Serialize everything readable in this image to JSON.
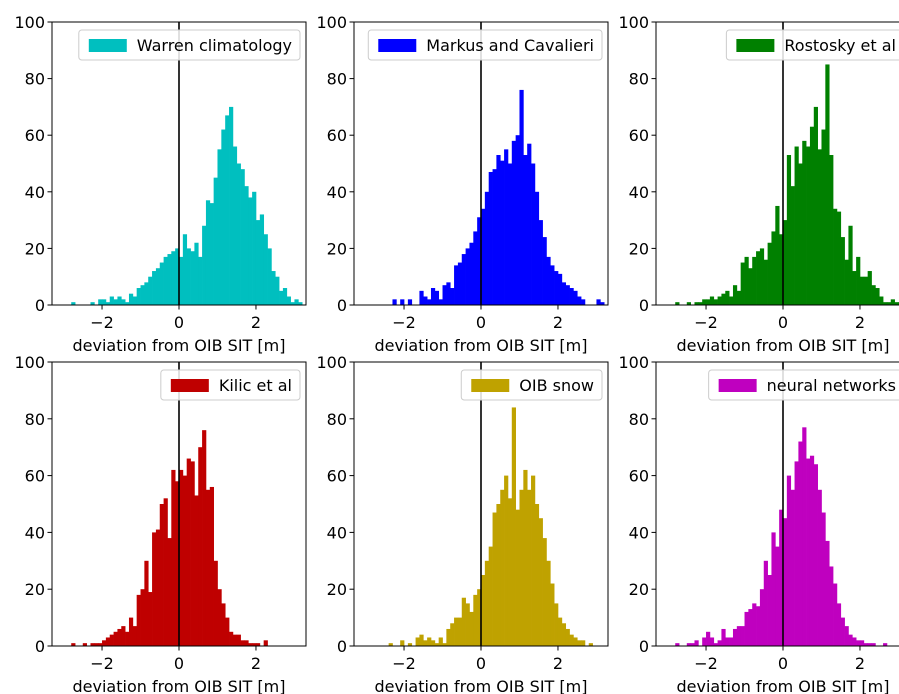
{
  "chart_data": [
    {
      "type": "bar",
      "legend": "Warren climatology",
      "legend_position": "top-right",
      "color": "#00bfbf",
      "xlabel": "deviation from OIB SIT [m]",
      "ylabel": "",
      "xlim": [
        -3.3,
        3.3
      ],
      "ylim": [
        0,
        100
      ],
      "xticks": [
        -2,
        0,
        2
      ],
      "xtick_labels": [
        "−2",
        "0",
        "2"
      ],
      "yticks": [
        0,
        20,
        40,
        60,
        80,
        100
      ],
      "yticklabels": [
        "0",
        "20",
        "40",
        "60",
        "80",
        "100"
      ],
      "bin_start": -3.0,
      "bin_width": 0.1,
      "values": [
        0,
        0,
        1,
        0,
        0,
        0,
        0,
        1,
        0,
        2,
        2,
        1,
        3,
        2,
        3,
        2,
        1,
        4,
        3,
        6,
        7,
        8,
        10,
        12,
        13,
        15,
        17,
        18,
        19,
        20,
        17,
        25,
        20,
        19,
        22,
        17,
        28,
        37,
        36,
        45,
        55,
        62,
        67,
        70,
        56,
        50,
        48,
        42,
        38,
        40,
        30,
        32,
        25,
        20,
        12,
        10,
        5,
        6,
        3,
        1,
        2,
        1,
        0,
        0,
        0
      ]
    },
    {
      "type": "bar",
      "legend": "Markus and Cavalieri",
      "legend_position": "top-right",
      "color": "#0000ff",
      "xlabel": "deviation from OIB SIT [m]",
      "ylabel": "",
      "xlim": [
        -3.3,
        3.3
      ],
      "ylim": [
        0,
        100
      ],
      "xticks": [
        -2,
        0,
        2
      ],
      "xtick_labels": [
        "−2",
        "0",
        "2"
      ],
      "yticks": [
        0,
        20,
        40,
        60,
        80,
        100
      ],
      "yticklabels": [
        "0",
        "20",
        "40",
        "60",
        "80",
        "100"
      ],
      "bin_start": -2.7,
      "bin_width": 0.1,
      "values": [
        0,
        0,
        0,
        0,
        2,
        0,
        2,
        0,
        2,
        0,
        0,
        5,
        3,
        2,
        6,
        5,
        2,
        7,
        8,
        6,
        14,
        15,
        18,
        20,
        22,
        26,
        31,
        34,
        40,
        47,
        48,
        53,
        51,
        55,
        50,
        58,
        60,
        76,
        53,
        57,
        50,
        40,
        30,
        24,
        17,
        14,
        12,
        11,
        8,
        7,
        6,
        5,
        3,
        2,
        0,
        0,
        0,
        2,
        1,
        0,
        0,
        0
      ]
    },
    {
      "type": "bar",
      "legend": "Rostosky et al",
      "legend_position": "top-right",
      "color": "#008000",
      "xlabel": "deviation from OIB SIT [m]",
      "ylabel": "",
      "xlim": [
        -3.3,
        3.3
      ],
      "ylim": [
        0,
        100
      ],
      "xticks": [
        -2,
        0,
        2
      ],
      "xtick_labels": [
        "−2",
        "0",
        "2"
      ],
      "yticks": [
        0,
        20,
        40,
        60,
        80,
        100
      ],
      "yticklabels": [
        "0",
        "20",
        "40",
        "60",
        "80",
        "100"
      ],
      "bin_start": -3.0,
      "bin_width": 0.1,
      "values": [
        0,
        0,
        1,
        0,
        0,
        1,
        0,
        1,
        1,
        2,
        2,
        3,
        2,
        3,
        4,
        5,
        3,
        7,
        5,
        15,
        17,
        13,
        17,
        19,
        20,
        16,
        22,
        26,
        35,
        25,
        30,
        53,
        42,
        56,
        50,
        58,
        56,
        63,
        70,
        55,
        62,
        85,
        53,
        34,
        33,
        24,
        16,
        28,
        12,
        17,
        10,
        10,
        12,
        7,
        6,
        3,
        1,
        1,
        2,
        1,
        1,
        0,
        0
      ]
    },
    {
      "type": "bar",
      "legend": "Kilic et al",
      "legend_position": "top-right",
      "color": "#bf0000",
      "xlabel": "deviation from OIB SIT [m]",
      "ylabel": "",
      "xlim": [
        -3.3,
        3.3
      ],
      "ylim": [
        0,
        100
      ],
      "xticks": [
        -2,
        0,
        2
      ],
      "xtick_labels": [
        "−2",
        "0",
        "2"
      ],
      "yticks": [
        0,
        20,
        40,
        60,
        80,
        100
      ],
      "yticklabels": [
        "0",
        "20",
        "40",
        "60",
        "80",
        "100"
      ],
      "bin_start": -3.0,
      "bin_width": 0.1,
      "values": [
        0,
        0,
        1,
        0,
        0,
        1,
        0,
        1,
        1,
        1,
        2,
        3,
        4,
        5,
        6,
        7,
        5,
        10,
        7,
        18,
        20,
        30,
        19,
        40,
        41,
        50,
        52,
        38,
        62,
        58,
        62,
        60,
        66,
        65,
        53,
        70,
        76,
        55,
        56,
        30,
        20,
        15,
        10,
        5,
        4,
        4,
        2,
        2,
        1,
        1,
        1,
        0,
        2,
        0,
        0,
        0,
        0,
        0,
        0,
        0,
        0,
        0
      ]
    },
    {
      "type": "bar",
      "legend": "OIB snow",
      "legend_position": "top-right",
      "color": "#bfa200",
      "xlabel": "deviation from OIB SIT [m]",
      "ylabel": "",
      "xlim": [
        -3.3,
        3.3
      ],
      "ylim": [
        0,
        100
      ],
      "xticks": [
        -2,
        0,
        2
      ],
      "xtick_labels": [
        "−2",
        "0",
        "2"
      ],
      "yticks": [
        0,
        20,
        40,
        60,
        80,
        100
      ],
      "yticklabels": [
        "0",
        "20",
        "40",
        "60",
        "80",
        "100"
      ],
      "bin_start": -2.7,
      "bin_width": 0.1,
      "values": [
        0,
        0,
        0,
        1,
        0,
        0,
        2,
        0,
        1,
        0,
        3,
        4,
        2,
        3,
        2,
        1,
        3,
        1,
        6,
        8,
        10,
        10,
        17,
        15,
        12,
        18,
        20,
        25,
        30,
        35,
        47,
        50,
        55,
        60,
        52,
        84,
        48,
        55,
        62,
        55,
        60,
        50,
        45,
        38,
        30,
        22,
        15,
        10,
        8,
        6,
        4,
        3,
        2,
        2,
        0,
        1,
        0,
        0,
        0,
        0,
        0
      ]
    },
    {
      "type": "bar",
      "legend": "neural networks",
      "legend_position": "top-right",
      "color": "#bf00bf",
      "xlabel": "deviation from OIB SIT [m]",
      "ylabel": "",
      "xlim": [
        -3.3,
        3.3
      ],
      "ylim": [
        0,
        100
      ],
      "xticks": [
        -2,
        0,
        2
      ],
      "xtick_labels": [
        "−2",
        "0",
        "2"
      ],
      "yticks": [
        0,
        20,
        40,
        60,
        80,
        100
      ],
      "yticklabels": [
        "0",
        "20",
        "40",
        "60",
        "80",
        "100"
      ],
      "bin_start": -3.0,
      "bin_width": 0.1,
      "values": [
        0,
        0,
        1,
        0,
        0,
        1,
        1,
        2,
        0,
        3,
        5,
        3,
        1,
        2,
        6,
        3,
        3,
        6,
        7,
        7,
        12,
        13,
        15,
        14,
        20,
        30,
        25,
        40,
        35,
        48,
        45,
        60,
        55,
        65,
        72,
        77,
        66,
        67,
        64,
        55,
        47,
        37,
        28,
        22,
        15,
        10,
        7,
        4,
        3,
        2,
        2,
        1,
        1,
        1,
        0,
        0,
        1,
        0,
        0,
        0,
        0,
        0
      ]
    }
  ]
}
